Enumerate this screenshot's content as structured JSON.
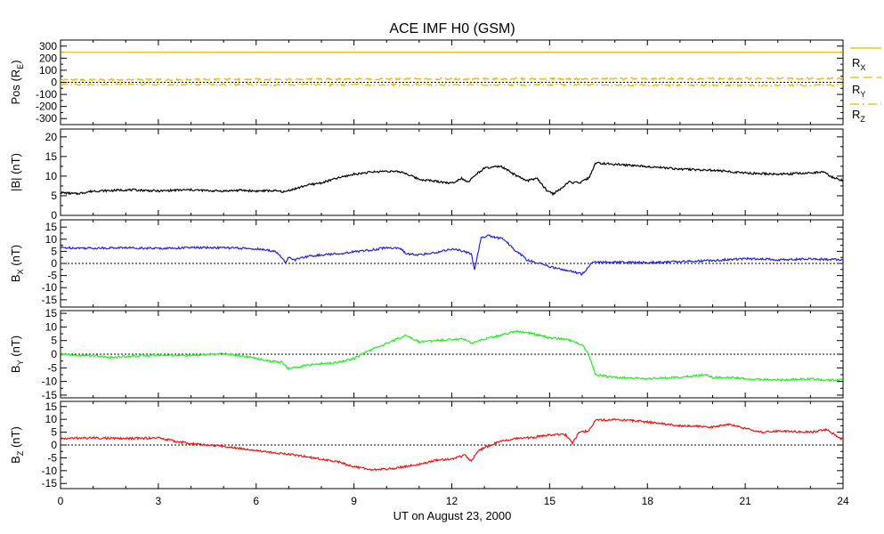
{
  "chart_data": {
    "type": "line",
    "title": "ACE IMF H0 (GSM)",
    "xlabel": "UT on August 23, 2000",
    "xlim": [
      0,
      24
    ],
    "xticks": [
      "0",
      "3",
      "6",
      "9",
      "12",
      "15",
      "18",
      "21",
      "24"
    ],
    "panels": [
      {
        "id": "pos",
        "ylabel_main": "Pos (R",
        "ylabel_sub": "E",
        "ylabel_end": ")",
        "ylim": [
          -350,
          350
        ],
        "yticks": [
          300,
          200,
          100,
          0,
          -100,
          -200,
          -300
        ],
        "zero_line": true,
        "legend": [
          {
            "main": "R",
            "sub": "X"
          },
          {
            "main": "R",
            "sub": "Y"
          },
          {
            "main": "R",
            "sub": "Z"
          }
        ],
        "series": [
          {
            "name": "RX",
            "color": "#e8b800",
            "style": "solid",
            "x": [
              0,
              24
            ],
            "y": [
              248,
              249
            ]
          },
          {
            "name": "RY",
            "color": "#e8b800",
            "style": "dashed",
            "x": [
              0,
              6,
              12,
              18,
              24
            ],
            "y": [
              20,
              25,
              28,
              30,
              32
            ]
          },
          {
            "name": "RZ",
            "color": "#e8b800",
            "style": "dashdot",
            "x": [
              0,
              6,
              12,
              20,
              24
            ],
            "y": [
              -18,
              -20,
              -20,
              -24,
              -24
            ]
          }
        ]
      },
      {
        "id": "bmag",
        "ylabel_main": "|B| (nT)",
        "ylabel_sub": "",
        "ylabel_end": "",
        "ylim": [
          0,
          22
        ],
        "yticks": [
          20,
          15,
          10,
          5,
          0
        ],
        "zero_line": false,
        "series": [
          {
            "name": "|B|",
            "color": "#000000",
            "style": "solid",
            "x": [
              0,
              0.5,
              1,
              1.5,
              2,
              2.5,
              3,
              3.5,
              4,
              4.5,
              5,
              5.5,
              6,
              6.5,
              6.9,
              7,
              7.3,
              7.5,
              8,
              8.5,
              9,
              9.5,
              10,
              10.5,
              11,
              11.5,
              12,
              12.3,
              12.5,
              12.8,
              13,
              13.5,
              14,
              14.3,
              14.6,
              14.9,
              15.1,
              15.3,
              15.6,
              15.9,
              16.2,
              16.4,
              16.5,
              17,
              18,
              19,
              20,
              21,
              22,
              23,
              23.4,
              23.6,
              24
            ],
            "y": [
              5.8,
              5.5,
              6.2,
              6.3,
              6.5,
              6.4,
              6.2,
              6.4,
              6.5,
              6.3,
              6.2,
              6.4,
              6.2,
              6.3,
              6.0,
              6.4,
              7.0,
              7.6,
              8.3,
              9.5,
              10.5,
              11.0,
              11.3,
              11.0,
              9.2,
              8.7,
              8.2,
              9.5,
              8.5,
              10.8,
              12.0,
              12.5,
              10.0,
              8.8,
              9.5,
              6.5,
              5.5,
              6.5,
              8.5,
              8.2,
              9.5,
              13.2,
              13.3,
              13.0,
              12.5,
              11.8,
              11.5,
              10.8,
              10.5,
              10.8,
              11.2,
              10.0,
              8.8
            ]
          }
        ]
      },
      {
        "id": "bx",
        "ylabel_main": "B",
        "ylabel_sub": "X",
        "ylabel_end": " (nT)",
        "ylim": [
          -18,
          18
        ],
        "yticks": [
          15,
          10,
          5,
          0,
          -5,
          -10,
          -15
        ],
        "zero_line": true,
        "series": [
          {
            "name": "BX",
            "color": "#2222dd",
            "style": "solid",
            "x": [
              0,
              1,
              2,
              3,
              4,
              5,
              6,
              6.6,
              6.9,
              7.0,
              7.2,
              7.6,
              8,
              8.5,
              9,
              9.5,
              10,
              10.4,
              10.6,
              11,
              11.5,
              12,
              12.2,
              12.6,
              12.7,
              12.9,
              13.1,
              13.6,
              13.9,
              14.3,
              14.8,
              15.2,
              15.6,
              16.0,
              16.3,
              17,
              18,
              19,
              20,
              21,
              22,
              23,
              24
            ],
            "y": [
              6.5,
              6.3,
              6.5,
              6.2,
              6.5,
              6.5,
              6.0,
              5.0,
              0.5,
              2.5,
              1.5,
              3.0,
              3.5,
              4.0,
              4.8,
              5.5,
              6.5,
              6.3,
              4.0,
              3.5,
              4.5,
              6.0,
              5.5,
              4.0,
              -2.5,
              10.5,
              11.5,
              10.0,
              6.0,
              1.5,
              -0.5,
              -2.0,
              -3.0,
              -4.5,
              0.5,
              0.5,
              0.3,
              0.8,
              1.2,
              2.0,
              1.5,
              1.8,
              1.5
            ]
          }
        ]
      },
      {
        "id": "by",
        "ylabel_main": "B",
        "ylabel_sub": "Y",
        "ylabel_end": " (nT)",
        "ylim": [
          -16,
          16
        ],
        "yticks": [
          15,
          10,
          5,
          0,
          -5,
          -10,
          -15
        ],
        "zero_line": true,
        "series": [
          {
            "name": "BY",
            "color": "#22ee22",
            "style": "solid",
            "x": [
              0,
              0.5,
              1,
              1.5,
              2,
              3,
              4,
              5,
              5.5,
              6,
              6.4,
              6.8,
              7.0,
              7.3,
              7.6,
              8,
              8.5,
              9,
              9.5,
              10,
              10.3,
              10.6,
              11,
              11.5,
              12,
              12.4,
              12.6,
              13,
              13.5,
              14,
              14.5,
              15,
              15.5,
              16,
              16.2,
              16.4,
              17,
              18,
              19,
              19.8,
              20,
              20.5,
              21,
              22,
              23,
              23.5,
              24
            ],
            "y": [
              0.2,
              -0.5,
              -0.5,
              -1.2,
              -0.8,
              -0.3,
              -0.5,
              0.2,
              -0.5,
              -1.5,
              -2.5,
              -3.0,
              -5.5,
              -4.5,
              -4.0,
              -3.5,
              -3.0,
              -1.5,
              1.5,
              4.0,
              5.5,
              7.0,
              4.5,
              5.0,
              5.5,
              5.5,
              4.0,
              5.5,
              7.0,
              8.5,
              7.5,
              6.0,
              5.5,
              3.5,
              0.0,
              -7.5,
              -8.5,
              -9.0,
              -8.5,
              -7.5,
              -8.5,
              -8.5,
              -9.0,
              -9.5,
              -9.0,
              -9.5,
              -9.5
            ]
          }
        ]
      },
      {
        "id": "bz",
        "ylabel_main": "B",
        "ylabel_sub": "Z",
        "ylabel_end": " (nT)",
        "ylim": [
          -17,
          17
        ],
        "yticks": [
          15,
          10,
          5,
          0,
          -5,
          -10,
          -15
        ],
        "zero_line": true,
        "series": [
          {
            "name": "BZ",
            "color": "#ee1111",
            "style": "solid",
            "x": [
              0,
              1,
              2,
              3,
              3.5,
              4,
              5,
              6,
              6.5,
              7,
              7.5,
              8,
              8.5,
              9,
              9.5,
              10,
              10.5,
              11,
              11.5,
              12,
              12.4,
              12.6,
              12.8,
              13,
              13.5,
              14,
              14.5,
              15,
              15.5,
              15.7,
              15.9,
              16.2,
              16.4,
              17,
              18,
              19,
              20,
              20.5,
              21,
              21.5,
              22,
              23,
              23.5,
              24
            ],
            "y": [
              2.5,
              2.8,
              2.5,
              2.8,
              1.5,
              0.5,
              -0.5,
              -2.0,
              -3.0,
              -3.5,
              -4.5,
              -5.5,
              -6.5,
              -8.5,
              -9.5,
              -9.5,
              -8.5,
              -7.5,
              -6.0,
              -5.5,
              -4.0,
              -6.5,
              -2.5,
              -1.0,
              1.5,
              2.5,
              3.0,
              4.0,
              4.0,
              0.5,
              5.0,
              5.5,
              9.5,
              10.0,
              9.0,
              7.5,
              7.0,
              8.0,
              6.5,
              5.0,
              5.5,
              5.0,
              6.0,
              2.0
            ]
          }
        ]
      }
    ]
  }
}
